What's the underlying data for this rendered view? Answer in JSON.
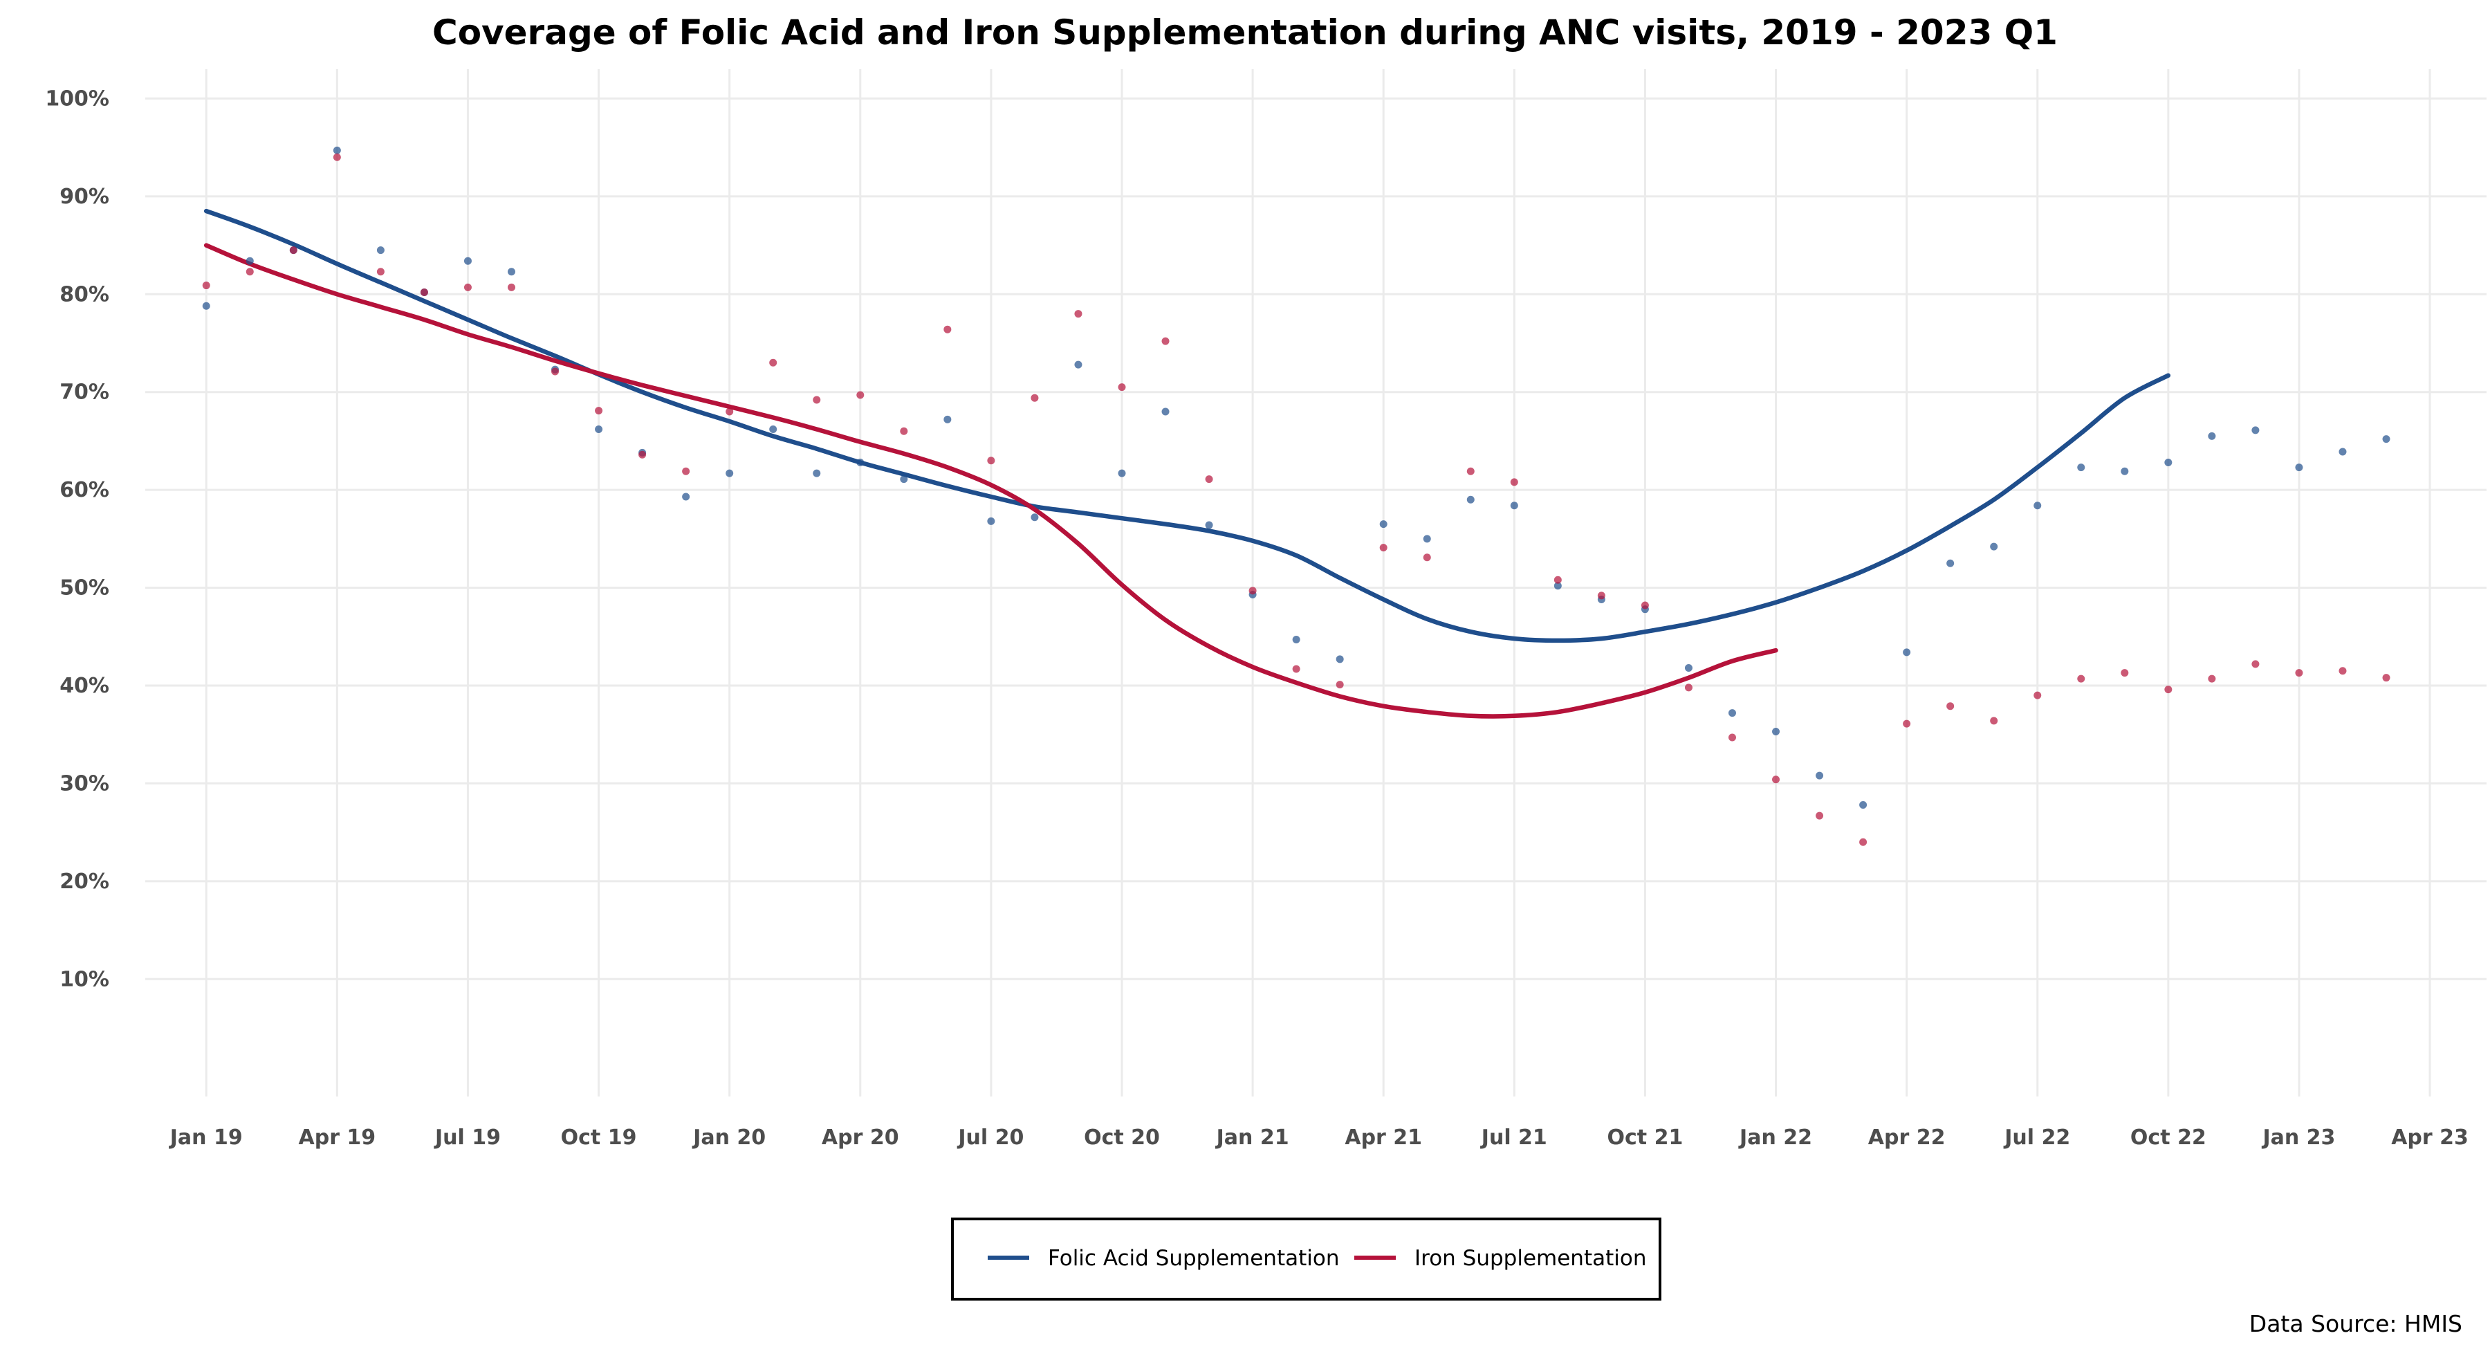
{
  "chart_data": {
    "type": "scatter",
    "title": "Coverage of Folic Acid and Iron Supplementation during ANC visits, 2019 - 2023 Q1",
    "xlabel": "",
    "ylabel": "",
    "x_ticks": [
      "Jan 19",
      "Apr 19",
      "Jul 19",
      "Oct 19",
      "Jan 20",
      "Apr 20",
      "Jul 20",
      "Oct 20",
      "Jan 21",
      "Apr 21",
      "Jul 21",
      "Oct 21",
      "Jan 22",
      "Apr 22",
      "Jul 22",
      "Oct 22",
      "Jan 23",
      "Apr 23"
    ],
    "y_ticks": [
      "10%",
      "20%",
      "30%",
      "40%",
      "50%",
      "60%",
      "70%",
      "80%",
      "90%",
      "100%"
    ],
    "y_tick_values": [
      10,
      20,
      30,
      40,
      50,
      60,
      70,
      80,
      90,
      100
    ],
    "ylim": [
      -2,
      103
    ],
    "xlim_months": [
      -1.4,
      52.3
    ],
    "x_months": [
      0,
      1,
      2,
      3,
      4,
      5,
      6,
      7,
      8,
      9,
      10,
      11,
      12,
      13,
      14,
      15,
      16,
      17,
      18,
      19,
      20,
      21,
      22,
      23,
      24,
      25,
      26,
      27,
      28,
      29,
      30,
      31,
      32,
      33,
      34,
      35,
      36,
      37,
      38,
      39,
      40,
      41,
      42,
      43,
      44,
      45,
      46,
      47,
      48,
      49,
      50
    ],
    "grid": true,
    "legend_position": "bottom",
    "series": [
      {
        "name": "Folic Acid Supplementation",
        "color": "#1f4e8c",
        "values": [
          78.8,
          83.4,
          84.5,
          94.7,
          84.5,
          80.2,
          83.4,
          82.3,
          72.3,
          66.2,
          63.8,
          59.3,
          61.7,
          66.2,
          61.7,
          62.8,
          61.1,
          67.2,
          56.8,
          57.2,
          72.8,
          61.7,
          68.0,
          56.4,
          49.3,
          44.7,
          42.7,
          56.5,
          55.0,
          59.0,
          58.4,
          50.2,
          48.8,
          47.8,
          41.8,
          37.2,
          35.3,
          30.8,
          27.8,
          43.4,
          52.5,
          54.2,
          58.4,
          62.3,
          61.9,
          62.8,
          65.5,
          66.1,
          62.3,
          63.9,
          65.2
        ],
        "trend": [
          88.5,
          86.9,
          85.1,
          83.1,
          81.2,
          79.3,
          77.4,
          75.5,
          73.7,
          71.8,
          70.0,
          68.4,
          67.0,
          65.5,
          64.2,
          62.8,
          61.6,
          60.4,
          59.3,
          58.3,
          57.7,
          57.1,
          56.5,
          55.8,
          54.8,
          53.3,
          51.0,
          48.8,
          46.8,
          45.5,
          44.8,
          44.6,
          44.8,
          45.5,
          46.3,
          47.3,
          48.5,
          50.0,
          51.7,
          53.8,
          56.3,
          59.0,
          62.3,
          65.8,
          69.4,
          71.7
        ]
      },
      {
        "name": "Iron Supplementation",
        "color": "#b5123a",
        "values": [
          80.9,
          82.3,
          84.5,
          94.0,
          82.3,
          80.2,
          80.7,
          80.7,
          72.1,
          68.1,
          63.6,
          61.9,
          68.0,
          73.0,
          69.2,
          69.7,
          66.0,
          76.4,
          63.0,
          69.4,
          78.0,
          70.5,
          75.2,
          61.1,
          49.7,
          41.7,
          40.1,
          54.1,
          53.1,
          61.9,
          60.8,
          50.8,
          49.2,
          48.2,
          39.8,
          34.7,
          30.4,
          26.7,
          24.0,
          36.1,
          37.9,
          36.4,
          39.0,
          40.7,
          41.3,
          39.6,
          40.7,
          42.2,
          41.3,
          41.5,
          40.8
        ],
        "trend": [
          85.0,
          83.1,
          81.5,
          80.0,
          78.7,
          77.4,
          75.9,
          74.6,
          73.2,
          71.9,
          70.7,
          69.6,
          68.5,
          67.4,
          66.2,
          64.9,
          63.7,
          62.3,
          60.5,
          58.0,
          54.5,
          50.3,
          46.7,
          44.0,
          41.9,
          40.3,
          38.9,
          37.9,
          37.3,
          36.9,
          36.9,
          37.3,
          38.2,
          39.3,
          40.8,
          42.5,
          43.6
        ]
      }
    ],
    "source_note": "Data Source: HMIS"
  }
}
